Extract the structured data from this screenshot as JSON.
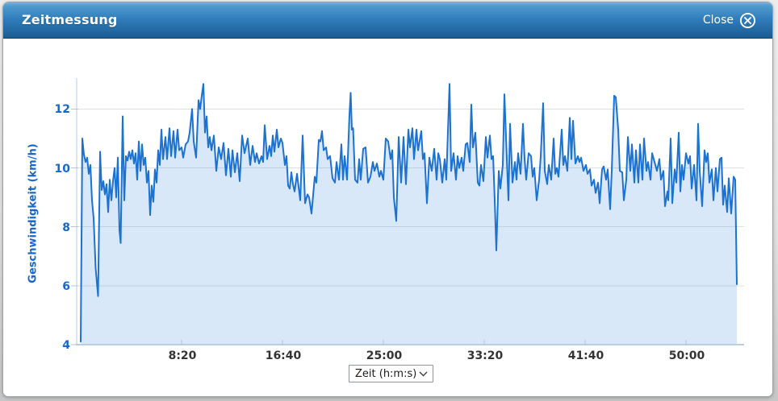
{
  "dialog": {
    "title": "Zeitmessung",
    "close_label": "Close"
  },
  "controls": {
    "x_unit_select": {
      "value": "Zeit (h:m:s)"
    }
  },
  "chart_data": {
    "type": "area",
    "title": "",
    "ylabel": "Geschwindigkeit (km/h)",
    "xlabel": "Zeit (h:m:s)",
    "x_unit": "seconds",
    "xlim": [
      -20,
      3288
    ],
    "ylim": [
      4,
      13.05
    ],
    "y_ticks": [
      4,
      6,
      8,
      10,
      12
    ],
    "x_ticks": [
      {
        "t": 500,
        "label": "8:20"
      },
      {
        "t": 1000,
        "label": "16:40"
      },
      {
        "t": 1500,
        "label": "25:00"
      },
      {
        "t": 2000,
        "label": "33:20"
      },
      {
        "t": 2500,
        "label": "41:40"
      },
      {
        "t": 3000,
        "label": "50:00"
      }
    ],
    "grid": "horizontal",
    "legend": "none",
    "line_color": "#1b72d0",
    "fill_color": "#d9e8f8",
    "axis_color": "#b9cde4",
    "grid_color": "rgba(100,120,140,0.22)",
    "tick_mark_color": "#b8c4d0",
    "y_label_color": "#1568c9",
    "x_label_color": "#333333",
    "points": [
      [
        0,
        4.1
      ],
      [
        8,
        11.0
      ],
      [
        16,
        10.45
      ],
      [
        24,
        10.2
      ],
      [
        32,
        10.35
      ],
      [
        40,
        9.8
      ],
      [
        48,
        10.1
      ],
      [
        56,
        8.9
      ],
      [
        64,
        8.3
      ],
      [
        74,
        6.6
      ],
      [
        86,
        5.65
      ],
      [
        96,
        10.55
      ],
      [
        104,
        9.25
      ],
      [
        112,
        9.55
      ],
      [
        120,
        9.1
      ],
      [
        128,
        9.45
      ],
      [
        136,
        8.5
      ],
      [
        144,
        9.6
      ],
      [
        152,
        8.9
      ],
      [
        160,
        9.55
      ],
      [
        168,
        10.0
      ],
      [
        176,
        9.0
      ],
      [
        184,
        10.35
      ],
      [
        192,
        7.9
      ],
      [
        198,
        7.45
      ],
      [
        208,
        11.75
      ],
      [
        216,
        8.9
      ],
      [
        224,
        10.4
      ],
      [
        232,
        10.25
      ],
      [
        240,
        10.55
      ],
      [
        248,
        10.3
      ],
      [
        256,
        10.6
      ],
      [
        264,
        10.15
      ],
      [
        272,
        10.5
      ],
      [
        280,
        9.6
      ],
      [
        288,
        10.9
      ],
      [
        296,
        9.9
      ],
      [
        304,
        10.8
      ],
      [
        312,
        10.1
      ],
      [
        320,
        10.35
      ],
      [
        328,
        9.5
      ],
      [
        336,
        9.9
      ],
      [
        344,
        8.4
      ],
      [
        352,
        9.4
      ],
      [
        360,
        8.85
      ],
      [
        368,
        9.95
      ],
      [
        376,
        9.5
      ],
      [
        384,
        10.6
      ],
      [
        392,
        10.1
      ],
      [
        400,
        11.3
      ],
      [
        408,
        10.3
      ],
      [
        420,
        11.05
      ],
      [
        428,
        10.3
      ],
      [
        440,
        11.35
      ],
      [
        448,
        10.4
      ],
      [
        460,
        11.25
      ],
      [
        468,
        10.35
      ],
      [
        480,
        11.3
      ],
      [
        488,
        10.6
      ],
      [
        500,
        10.7
      ],
      [
        508,
        10.35
      ],
      [
        520,
        10.8
      ],
      [
        532,
        10.9
      ],
      [
        540,
        11.2
      ],
      [
        552,
        12.0
      ],
      [
        560,
        10.9
      ],
      [
        572,
        10.35
      ],
      [
        584,
        12.3
      ],
      [
        592,
        12.0
      ],
      [
        600,
        12.45
      ],
      [
        608,
        12.85
      ],
      [
        616,
        11.2
      ],
      [
        624,
        11.75
      ],
      [
        632,
        10.7
      ],
      [
        640,
        11.05
      ],
      [
        648,
        10.6
      ],
      [
        660,
        11.1
      ],
      [
        672,
        9.9
      ],
      [
        684,
        10.7
      ],
      [
        696,
        10.3
      ],
      [
        708,
        10.85
      ],
      [
        720,
        9.75
      ],
      [
        732,
        10.65
      ],
      [
        744,
        9.7
      ],
      [
        752,
        10.6
      ],
      [
        764,
        9.85
      ],
      [
        776,
        10.5
      ],
      [
        788,
        9.55
      ],
      [
        800,
        11.1
      ],
      [
        812,
        10.5
      ],
      [
        828,
        11.0
      ],
      [
        840,
        10.1
      ],
      [
        852,
        10.75
      ],
      [
        864,
        10.2
      ],
      [
        872,
        10.5
      ],
      [
        884,
        10.15
      ],
      [
        896,
        10.4
      ],
      [
        904,
        10.2
      ],
      [
        912,
        11.45
      ],
      [
        924,
        10.3
      ],
      [
        936,
        10.75
      ],
      [
        944,
        10.4
      ],
      [
        952,
        11.1
      ],
      [
        960,
        10.55
      ],
      [
        972,
        11.3
      ],
      [
        980,
        10.7
      ],
      [
        992,
        11.0
      ],
      [
        1000,
        10.85
      ],
      [
        1012,
        10.1
      ],
      [
        1020,
        10.4
      ],
      [
        1028,
        9.4
      ],
      [
        1036,
        9.3
      ],
      [
        1044,
        9.85
      ],
      [
        1052,
        9.45
      ],
      [
        1060,
        9.2
      ],
      [
        1072,
        9.8
      ],
      [
        1080,
        9.35
      ],
      [
        1088,
        8.9
      ],
      [
        1100,
        11.1
      ],
      [
        1112,
        8.8
      ],
      [
        1124,
        9.1
      ],
      [
        1132,
        9.0
      ],
      [
        1144,
        8.45
      ],
      [
        1160,
        9.7
      ],
      [
        1168,
        9.5
      ],
      [
        1180,
        10.95
      ],
      [
        1188,
        10.9
      ],
      [
        1196,
        11.25
      ],
      [
        1204,
        10.6
      ],
      [
        1216,
        10.7
      ],
      [
        1224,
        10.3
      ],
      [
        1236,
        10.4
      ],
      [
        1248,
        9.65
      ],
      [
        1260,
        9.5
      ],
      [
        1268,
        10.2
      ],
      [
        1280,
        9.6
      ],
      [
        1292,
        10.8
      ],
      [
        1300,
        9.6
      ],
      [
        1308,
        10.4
      ],
      [
        1320,
        9.6
      ],
      [
        1332,
        11.8
      ],
      [
        1338,
        12.55
      ],
      [
        1344,
        11.3
      ],
      [
        1350,
        11.35
      ],
      [
        1360,
        9.6
      ],
      [
        1372,
        9.5
      ],
      [
        1380,
        10.3
      ],
      [
        1388,
        9.6
      ],
      [
        1400,
        10.65
      ],
      [
        1412,
        10.7
      ],
      [
        1424,
        9.5
      ],
      [
        1436,
        9.7
      ],
      [
        1448,
        10.2
      ],
      [
        1456,
        9.9
      ],
      [
        1468,
        10.15
      ],
      [
        1480,
        9.7
      ],
      [
        1488,
        9.9
      ],
      [
        1500,
        9.6
      ],
      [
        1512,
        11.0
      ],
      [
        1524,
        10.9
      ],
      [
        1536,
        10.3
      ],
      [
        1544,
        10.6
      ],
      [
        1552,
        9.0
      ],
      [
        1564,
        8.2
      ],
      [
        1576,
        11.05
      ],
      [
        1588,
        9.5
      ],
      [
        1600,
        11.05
      ],
      [
        1612,
        9.45
      ],
      [
        1624,
        11.3
      ],
      [
        1632,
        10.7
      ],
      [
        1644,
        11.35
      ],
      [
        1652,
        10.3
      ],
      [
        1664,
        11.3
      ],
      [
        1672,
        10.6
      ],
      [
        1688,
        11.25
      ],
      [
        1696,
        10.3
      ],
      [
        1704,
        10.5
      ],
      [
        1716,
        8.8
      ],
      [
        1728,
        10.35
      ],
      [
        1740,
        9.9
      ],
      [
        1752,
        10.65
      ],
      [
        1764,
        9.6
      ],
      [
        1772,
        10.5
      ],
      [
        1780,
        10.3
      ],
      [
        1792,
        9.5
      ],
      [
        1804,
        10.3
      ],
      [
        1812,
        9.6
      ],
      [
        1828,
        12.85
      ],
      [
        1836,
        9.9
      ],
      [
        1848,
        10.5
      ],
      [
        1860,
        9.6
      ],
      [
        1868,
        10.4
      ],
      [
        1876,
        10.0
      ],
      [
        1888,
        10.35
      ],
      [
        1896,
        9.9
      ],
      [
        1908,
        10.8
      ],
      [
        1916,
        10.85
      ],
      [
        1928,
        10.2
      ],
      [
        1936,
        12.15
      ],
      [
        1944,
        10.7
      ],
      [
        1956,
        11.2
      ],
      [
        1968,
        9.5
      ],
      [
        1976,
        9.4
      ],
      [
        1984,
        10.1
      ],
      [
        1996,
        9.55
      ],
      [
        2008,
        11.05
      ],
      [
        2016,
        10.35
      ],
      [
        2028,
        11.1
      ],
      [
        2036,
        10.3
      ],
      [
        2044,
        10.4
      ],
      [
        2052,
        8.9
      ],
      [
        2060,
        7.2
      ],
      [
        2072,
        9.9
      ],
      [
        2080,
        9.3
      ],
      [
        2092,
        10.1
      ],
      [
        2100,
        12.5
      ],
      [
        2112,
        10.3
      ],
      [
        2120,
        8.9
      ],
      [
        2128,
        11.5
      ],
      [
        2140,
        9.5
      ],
      [
        2152,
        10.2
      ],
      [
        2160,
        9.6
      ],
      [
        2168,
        10.5
      ],
      [
        2180,
        9.8
      ],
      [
        2192,
        11.5
      ],
      [
        2200,
        10.3
      ],
      [
        2208,
        9.6
      ],
      [
        2220,
        10.5
      ],
      [
        2232,
        10.4
      ],
      [
        2240,
        9.7
      ],
      [
        2248,
        10.0
      ],
      [
        2260,
        8.9
      ],
      [
        2272,
        9.6
      ],
      [
        2280,
        10.4
      ],
      [
        2292,
        12.2
      ],
      [
        2300,
        9.9
      ],
      [
        2312,
        9.45
      ],
      [
        2320,
        10.1
      ],
      [
        2332,
        9.6
      ],
      [
        2344,
        11.0
      ],
      [
        2352,
        9.8
      ],
      [
        2360,
        10.0
      ],
      [
        2368,
        9.7
      ],
      [
        2384,
        11.3
      ],
      [
        2392,
        10.1
      ],
      [
        2400,
        10.4
      ],
      [
        2412,
        9.9
      ],
      [
        2424,
        11.7
      ],
      [
        2432,
        10.3
      ],
      [
        2440,
        11.6
      ],
      [
        2452,
        10.15
      ],
      [
        2464,
        10.4
      ],
      [
        2472,
        10.2
      ],
      [
        2480,
        10.35
      ],
      [
        2492,
        9.9
      ],
      [
        2504,
        10.1
      ],
      [
        2512,
        9.8
      ],
      [
        2524,
        9.95
      ],
      [
        2532,
        9.4
      ],
      [
        2544,
        9.6
      ],
      [
        2552,
        9.15
      ],
      [
        2564,
        9.5
      ],
      [
        2572,
        8.8
      ],
      [
        2584,
        9.95
      ],
      [
        2592,
        10.05
      ],
      [
        2604,
        9.6
      ],
      [
        2612,
        9.95
      ],
      [
        2624,
        8.6
      ],
      [
        2632,
        9.9
      ],
      [
        2644,
        12.45
      ],
      [
        2652,
        12.4
      ],
      [
        2664,
        11.3
      ],
      [
        2672,
        9.9
      ],
      [
        2684,
        9.85
      ],
      [
        2692,
        8.9
      ],
      [
        2704,
        9.6
      ],
      [
        2712,
        11.05
      ],
      [
        2724,
        9.9
      ],
      [
        2732,
        10.8
      ],
      [
        2744,
        9.5
      ],
      [
        2752,
        10.6
      ],
      [
        2764,
        9.5
      ],
      [
        2772,
        10.8
      ],
      [
        2784,
        9.6
      ],
      [
        2792,
        11.0
      ],
      [
        2804,
        9.9
      ],
      [
        2812,
        10.2
      ],
      [
        2824,
        9.6
      ],
      [
        2832,
        10.5
      ],
      [
        2844,
        10.2
      ],
      [
        2856,
        9.9
      ],
      [
        2868,
        10.3
      ],
      [
        2876,
        9.6
      ],
      [
        2888,
        9.9
      ],
      [
        2896,
        8.7
      ],
      [
        2908,
        9.2
      ],
      [
        2912,
        8.9
      ],
      [
        2924,
        11.0
      ],
      [
        2932,
        8.8
      ],
      [
        2944,
        9.95
      ],
      [
        2952,
        9.5
      ],
      [
        2964,
        11.2
      ],
      [
        2972,
        9.2
      ],
      [
        2980,
        10.1
      ],
      [
        2988,
        9.6
      ],
      [
        3000,
        10.5
      ],
      [
        3012,
        10.15
      ],
      [
        3020,
        10.4
      ],
      [
        3028,
        9.3
      ],
      [
        3040,
        10.1
      ],
      [
        3052,
        8.9
      ],
      [
        3060,
        11.5
      ],
      [
        3068,
        9.9
      ],
      [
        3080,
        8.7
      ],
      [
        3092,
        10.6
      ],
      [
        3100,
        10.2
      ],
      [
        3108,
        10.5
      ],
      [
        3116,
        9.5
      ],
      [
        3128,
        9.95
      ],
      [
        3136,
        8.9
      ],
      [
        3148,
        10.0
      ],
      [
        3156,
        9.2
      ],
      [
        3168,
        10.3
      ],
      [
        3176,
        10.35
      ],
      [
        3184,
        8.75
      ],
      [
        3192,
        9.4
      ],
      [
        3204,
        8.5
      ],
      [
        3212,
        9.65
      ],
      [
        3224,
        8.45
      ],
      [
        3236,
        9.7
      ],
      [
        3244,
        9.6
      ],
      [
        3252,
        6.05
      ]
    ]
  }
}
